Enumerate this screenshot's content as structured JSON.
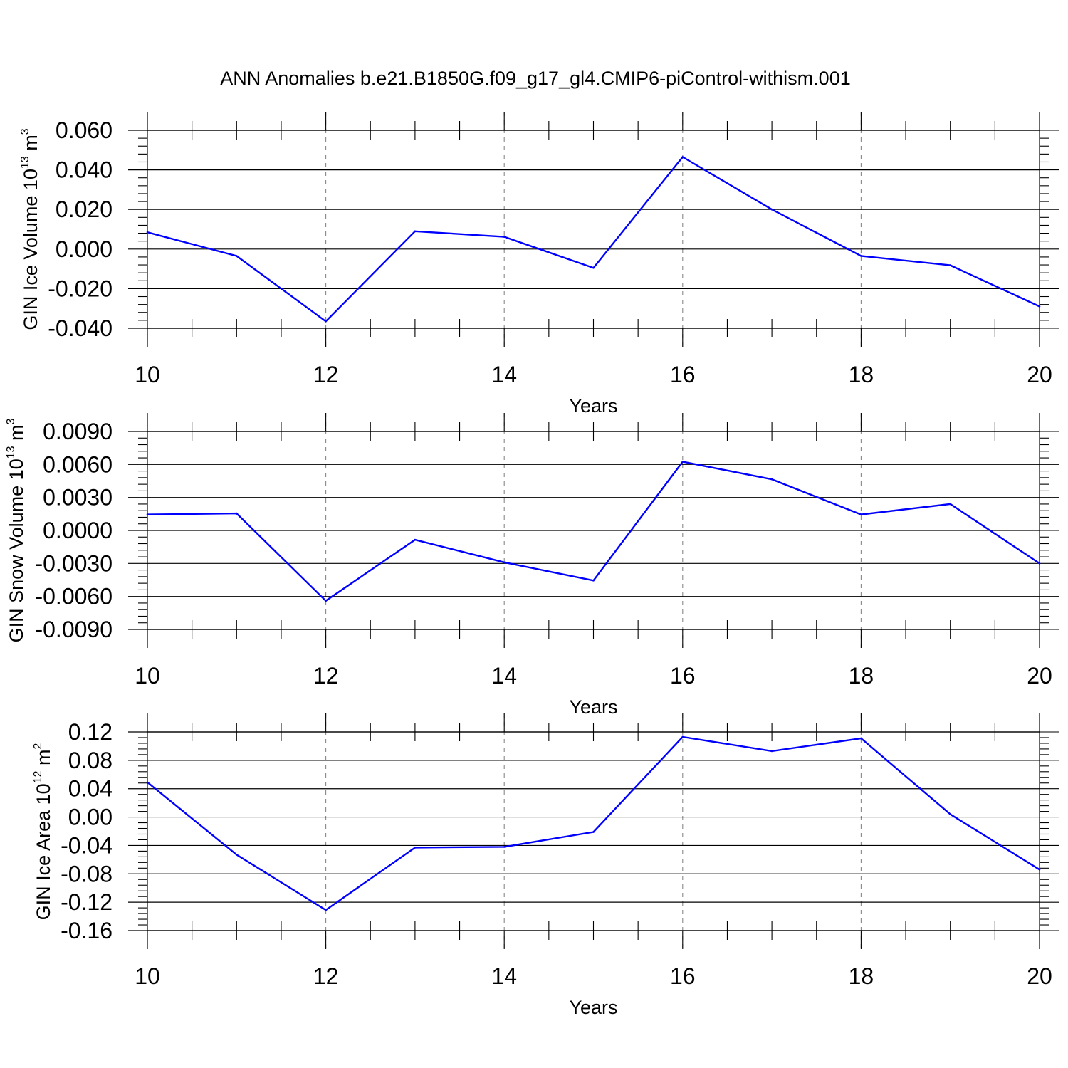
{
  "title": "ANN Anomalies b.e21.B1850G.f09_g17_gl4.CMIP6-piControl-withism.001",
  "colors": {
    "series": "#0000ff",
    "frame": "#000000",
    "grid": "#888888"
  },
  "chart_data": [
    {
      "type": "line",
      "ylabel": {
        "text": "GIN Ice Volume 10",
        "exp": "13",
        "unit": " m",
        "unit_exp": "3"
      },
      "xlabel": "Years",
      "xlim": [
        10,
        20
      ],
      "ylim": [
        -0.04,
        0.06
      ],
      "xticks": [
        "10",
        "12",
        "14",
        "16",
        "18",
        "20"
      ],
      "yticks": [
        "-0.040",
        "-0.020",
        "0.000",
        "0.020",
        "0.040",
        "0.060"
      ],
      "vgrid": true,
      "series": [
        {
          "x": [
            10,
            11,
            12,
            13,
            14,
            15,
            16,
            17,
            18,
            19,
            20
          ],
          "values": [
            0.0085,
            -0.0035,
            -0.0365,
            0.009,
            0.0062,
            -0.0095,
            0.0465,
            0.02,
            -0.0035,
            -0.0082,
            -0.029
          ]
        }
      ]
    },
    {
      "type": "line",
      "ylabel": {
        "text": "GIN Snow Volume 10",
        "exp": "13",
        "unit": " m",
        "unit_exp": "3"
      },
      "xlabel": "Years",
      "xlim": [
        10,
        20
      ],
      "ylim": [
        -0.009,
        0.009
      ],
      "xticks": [
        "10",
        "12",
        "14",
        "16",
        "18",
        "20"
      ],
      "yticks": [
        "-0.0090",
        "-0.0060",
        "-0.0030",
        "0.0000",
        "0.0030",
        "0.0060",
        "0.0090"
      ],
      "vgrid": true,
      "series": [
        {
          "x": [
            10,
            11,
            12,
            13,
            14,
            15,
            16,
            17,
            18,
            19,
            20
          ],
          "values": [
            0.00145,
            0.00155,
            -0.0064,
            -0.00085,
            -0.0029,
            -0.00455,
            0.00625,
            0.00465,
            0.00145,
            0.0024,
            -0.003
          ]
        }
      ]
    },
    {
      "type": "line",
      "ylabel": {
        "text": "GIN Ice Area 10",
        "exp": "12",
        "unit": " m",
        "unit_exp": "2"
      },
      "xlabel": "Years",
      "xlim": [
        10,
        20
      ],
      "ylim": [
        -0.16,
        0.12
      ],
      "xticks": [
        "10",
        "12",
        "14",
        "16",
        "18",
        "20"
      ],
      "yticks": [
        "-0.16",
        "-0.12",
        "-0.08",
        "-0.04",
        "0.00",
        "0.04",
        "0.08",
        "0.12"
      ],
      "vgrid": true,
      "series": [
        {
          "x": [
            10,
            11,
            12,
            13,
            14,
            15,
            16,
            17,
            18,
            19,
            20
          ],
          "values": [
            0.049,
            -0.053,
            -0.131,
            -0.043,
            -0.042,
            -0.021,
            0.113,
            0.093,
            0.111,
            0.004,
            -0.074
          ]
        }
      ]
    }
  ]
}
